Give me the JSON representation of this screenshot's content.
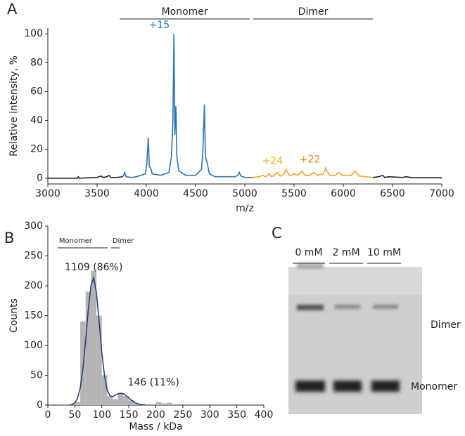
{
  "panel_labels": [
    "A",
    "B",
    "C"
  ],
  "chart_data": [
    {
      "type": "line",
      "xlabel": "m/z",
      "ylabel": "Relative intensity, %",
      "xlim": [
        3000,
        7000
      ],
      "ylim": [
        -4,
        104
      ],
      "xticks": [
        3000,
        3500,
        4000,
        4500,
        5000,
        5500,
        6000,
        6500,
        7000
      ],
      "yticks": [
        0,
        20,
        40,
        60,
        80,
        100
      ],
      "regions": [
        {
          "label": "Monomer",
          "range": [
            3730,
            5050
          ]
        },
        {
          "label": "Dimer",
          "range": [
            5086,
            6300
          ]
        }
      ],
      "annotations": [
        {
          "text": "+15",
          "x": 4280,
          "y": 100,
          "color": "#2a72b5"
        },
        {
          "text": "+24",
          "x": 5430,
          "y": 6,
          "color": "#f0b400"
        },
        {
          "text": "+22",
          "x": 5810,
          "y": 7,
          "color": "#f07f1e"
        }
      ],
      "series": [
        {
          "color": "#222222",
          "x": [
            3000,
            3300,
            3310,
            3320,
            3500,
            3540,
            3560,
            3600,
            3620,
            3640,
            3700,
            3760
          ],
          "values": [
            0,
            0,
            1,
            0,
            0.5,
            1.5,
            0.5,
            1,
            2,
            0.5,
            0.5,
            1
          ]
        },
        {
          "color": "#2a72b5",
          "x": [
            3760,
            3770,
            3780,
            3795,
            3850,
            3900,
            3990,
            4005,
            4020,
            4030,
            4045,
            4060,
            4150,
            4230,
            4255,
            4270,
            4280,
            4290,
            4300,
            4310,
            4330,
            4400,
            4500,
            4560,
            4575,
            4590,
            4600,
            4620,
            4640,
            4700,
            4800,
            4900,
            4930,
            4945,
            4960,
            5000,
            5080
          ],
          "values": [
            1,
            2,
            4,
            1,
            0.5,
            1,
            3,
            10,
            28,
            8,
            7,
            3,
            2,
            4,
            15,
            40,
            100,
            30,
            50,
            15,
            5,
            2,
            2,
            6,
            20,
            51,
            15,
            10,
            3,
            1,
            1,
            1,
            2,
            4,
            1.5,
            0.5,
            0.5
          ]
        },
        {
          "color": "#f3a020",
          "x": [
            5080,
            5150,
            5180,
            5210,
            5230,
            5250,
            5270,
            5300,
            5330,
            5360,
            5400,
            5420,
            5450,
            5480,
            5500,
            5530,
            5560,
            5580,
            5610,
            5660,
            5700,
            5740,
            5800,
            5820,
            5860,
            5920,
            5950,
            5990,
            6080,
            6120,
            6160,
            6300
          ],
          "values": [
            0.5,
            1,
            2,
            1,
            2,
            3,
            1,
            2,
            4,
            1.5,
            3,
            6,
            2,
            2,
            3,
            2,
            3,
            5,
            2,
            2,
            4,
            2,
            3,
            7,
            2,
            2,
            4,
            2,
            2,
            5,
            1.5,
            0.5
          ]
        },
        {
          "color": "#222222",
          "x": [
            6300,
            6360,
            6400,
            6420,
            6460,
            6600,
            6640,
            6700,
            7000
          ],
          "values": [
            0.5,
            1,
            2,
            0.5,
            1,
            0.5,
            1,
            0.3,
            0.3
          ]
        }
      ]
    },
    {
      "type": "histogram",
      "xlabel": "Mass / kDa",
      "ylabel": "Counts",
      "xlim": [
        0,
        400
      ],
      "ylim": [
        0,
        300
      ],
      "xticks": [
        0,
        50,
        100,
        150,
        200,
        250,
        300,
        350,
        400
      ],
      "yticks": [
        0,
        50,
        100,
        150,
        200,
        250,
        300
      ],
      "color": "#b4b4b4",
      "bins": [
        50,
        60,
        70,
        80,
        90,
        100,
        110,
        120,
        130,
        140,
        150,
        160,
        170,
        180,
        190,
        200,
        210,
        220,
        230
      ],
      "values": [
        5,
        140,
        190,
        225,
        150,
        50,
        15,
        10,
        20,
        15,
        8,
        3,
        2,
        0,
        2,
        5,
        3,
        4
      ],
      "regions": [
        {
          "label": "Monomer",
          "range": [
            18,
            111
          ]
        },
        {
          "label": "Dimer",
          "range": [
            117,
            133
          ]
        }
      ],
      "annotations": [
        {
          "text": "1109 (86%)",
          "x": 85,
          "y": 213
        },
        {
          "text": "146 (11%)",
          "x": 135,
          "y": 20
        }
      ],
      "fit": {
        "color": "#1f3b6e",
        "x": [
          40,
          45,
          50,
          55,
          60,
          65,
          70,
          75,
          80,
          85,
          90,
          95,
          100,
          105,
          110,
          115,
          120,
          125,
          130,
          135,
          140,
          145,
          150,
          155,
          160,
          165,
          170,
          175,
          180
        ],
        "values": [
          0.3,
          1.1,
          3.9,
          11.5,
          28.8,
          61,
          108,
          161,
          201,
          213,
          188,
          140,
          88,
          49,
          25,
          16,
          14,
          17,
          19,
          20,
          19,
          16,
          12,
          8.2,
          5,
          2.7,
          1.3,
          0.6,
          0.2
        ]
      }
    }
  ],
  "gel": {
    "lanes": [
      "0 mM",
      "2 mM",
      "10 mM"
    ],
    "bands": [
      "Dimer",
      "Monomer"
    ]
  }
}
